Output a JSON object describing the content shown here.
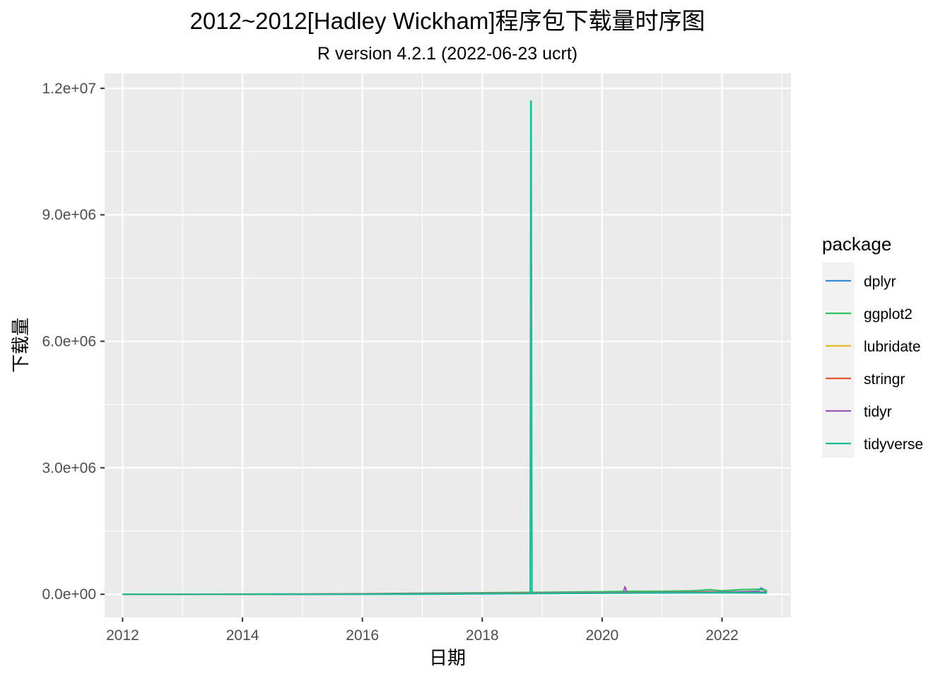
{
  "chart_data": {
    "type": "line",
    "title": "2012~2012[Hadley Wickham]程序包下载量时序图",
    "subtitle": "R version 4.2.1 (2022-06-23 ucrt)",
    "xlabel": "日期",
    "ylabel": "下载量",
    "xlim": [
      2011.7,
      2023.15
    ],
    "ylim": [
      -550000,
      12350000
    ],
    "x_ticks": [
      2012,
      2014,
      2016,
      2018,
      2020,
      2022
    ],
    "x_tick_labels": [
      "2012",
      "2014",
      "2016",
      "2018",
      "2020",
      "2022"
    ],
    "y_ticks": [
      0,
      3000000,
      6000000,
      9000000,
      12000000
    ],
    "y_tick_labels": [
      "0.0e+00",
      "3.0e+06",
      "6.0e+06",
      "9.0e+06",
      "1.2e+07"
    ],
    "grid": true,
    "legend": {
      "title": "package",
      "position": "right"
    },
    "series": [
      {
        "name": "dplyr",
        "color": "#3B8BD4",
        "x": [
          2014.1,
          2015.0,
          2016.0,
          2017.0,
          2018.0,
          2019.0,
          2020.0,
          2020.5,
          2021.0,
          2021.5,
          2021.8,
          2022.0,
          2022.3,
          2022.6,
          2022.65,
          2022.75
        ],
        "y": [
          0,
          2000,
          5000,
          12000,
          20000,
          30000,
          40000,
          45000,
          45000,
          50000,
          60000,
          50000,
          60000,
          70000,
          150000,
          70000
        ]
      },
      {
        "name": "ggplot2",
        "color": "#2EC462",
        "x": [
          2012.0,
          2013.0,
          2014.0,
          2015.0,
          2016.0,
          2017.0,
          2018.0,
          2019.0,
          2020.0,
          2020.5,
          2021.0,
          2021.5,
          2021.8,
          2022.0,
          2022.3,
          2022.6,
          2022.75
        ],
        "y": [
          0,
          1000,
          3000,
          7000,
          12000,
          25000,
          35000,
          45000,
          60000,
          70000,
          70000,
          80000,
          110000,
          80000,
          110000,
          120000,
          90000
        ]
      },
      {
        "name": "lubridate",
        "color": "#E8B923",
        "x": [
          2012.0,
          2014.0,
          2016.0,
          2017.0,
          2018.0,
          2019.0,
          2020.0,
          2021.0,
          2021.8,
          2022.0,
          2022.5,
          2022.75
        ],
        "y": [
          0,
          1000,
          4000,
          8000,
          15000,
          20000,
          25000,
          30000,
          45000,
          35000,
          45000,
          40000
        ]
      },
      {
        "name": "stringr",
        "color": "#E6553A",
        "x": [
          2012.0,
          2014.0,
          2016.0,
          2017.0,
          2018.0,
          2019.0,
          2020.0,
          2021.0,
          2021.8,
          2022.0,
          2022.5,
          2022.75
        ],
        "y": [
          0,
          2000,
          6000,
          12000,
          20000,
          28000,
          35000,
          40000,
          55000,
          45000,
          55000,
          50000
        ]
      },
      {
        "name": "tidyr",
        "color": "#9B59B6",
        "x": [
          2014.5,
          2016.0,
          2017.0,
          2018.0,
          2019.0,
          2020.0,
          2020.35,
          2020.38,
          2020.42,
          2021.0,
          2022.0,
          2022.75
        ],
        "y": [
          0,
          3000,
          8000,
          15000,
          22000,
          30000,
          30000,
          180000,
          30000,
          40000,
          45000,
          50000
        ]
      },
      {
        "name": "tidyverse",
        "color": "#1ABC9C",
        "x": [
          2012.0,
          2016.0,
          2016.9,
          2017.5,
          2018.0,
          2018.8,
          2018.81,
          2018.815,
          2018.83,
          2019.0,
          2020.0,
          2021.0,
          2022.0,
          2022.75
        ],
        "y": [
          0,
          0,
          2000,
          6000,
          10000,
          15000,
          11700000,
          11700000,
          15000,
          18000,
          25000,
          30000,
          35000,
          30000
        ]
      }
    ]
  }
}
